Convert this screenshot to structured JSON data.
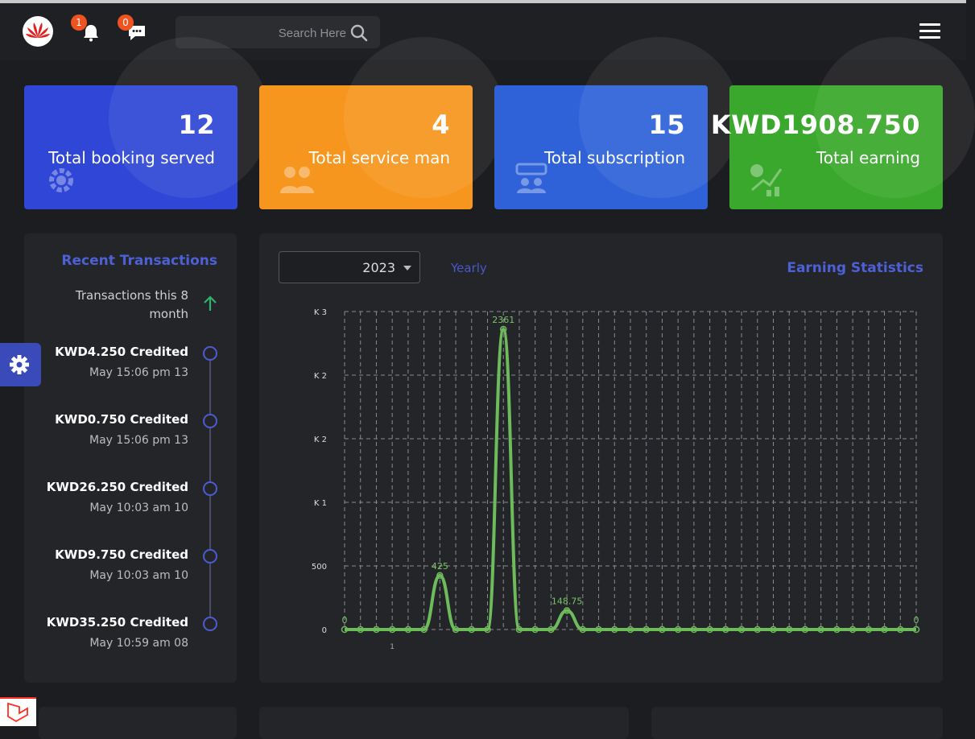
{
  "header": {
    "search_placeholder": "Search Here",
    "notifications_count": "1",
    "messages_count": "0"
  },
  "stats": [
    {
      "value": "12",
      "label": "Total booking served",
      "icon": "gear-people-icon",
      "color": "#2f46d6"
    },
    {
      "value": "4",
      "label": "Total service man",
      "icon": "people-icon",
      "color": "#f7961f"
    },
    {
      "value": "15",
      "label": "Total subscription",
      "icon": "subscription-icon",
      "color": "#2f62d8"
    },
    {
      "value": "KWD1908.750",
      "label": "Total earning",
      "icon": "earning-chart-icon",
      "color": "#3aa82c"
    }
  ],
  "recent": {
    "title": "Recent Transactions",
    "subtitle": "Transactions this 8 month",
    "items": [
      {
        "amount": "KWD4.250 Credited",
        "time": "May 15:06 pm 13"
      },
      {
        "amount": "KWD0.750 Credited",
        "time": "May 15:06 pm 13"
      },
      {
        "amount": "KWD26.250 Credited",
        "time": "May 10:03 am 10"
      },
      {
        "amount": "KWD9.750 Credited",
        "time": "May 10:03 am 10"
      },
      {
        "amount": "KWD35.250 Credited",
        "time": "May 10:59 am 08"
      }
    ]
  },
  "earning": {
    "title": "Earning Statistics",
    "year": "2023",
    "period": "Yearly"
  },
  "chart_data": {
    "type": "line",
    "ylim": [
      0,
      2500
    ],
    "y_ticks": [
      {
        "value": 0,
        "label": "0"
      },
      {
        "value": 500,
        "label": "500"
      },
      {
        "value": 1000,
        "label": "K 1"
      },
      {
        "value": 1500,
        "label": "K 2"
      },
      {
        "value": 2000,
        "label": "K 2"
      },
      {
        "value": 2500,
        "label": "K 3"
      }
    ],
    "x_tick_label": "1",
    "series": [
      {
        "color": "#6dbb5a",
        "values": [
          0,
          0,
          0,
          0,
          0,
          0,
          425,
          0,
          0,
          0,
          2361,
          0,
          0,
          0,
          148.75,
          0,
          0,
          0,
          0,
          0,
          0,
          0,
          0,
          0,
          0,
          0,
          0,
          0,
          0,
          0,
          0,
          0,
          0,
          0,
          0,
          0,
          0
        ],
        "labels": [
          {
            "index": 0,
            "text": "0"
          },
          {
            "index": 6,
            "text": "425"
          },
          {
            "index": 10,
            "text": "2361"
          },
          {
            "index": 14,
            "text": "148.75"
          },
          {
            "index": 36,
            "text": "0"
          }
        ]
      }
    ],
    "grid": true,
    "legend": "none"
  }
}
